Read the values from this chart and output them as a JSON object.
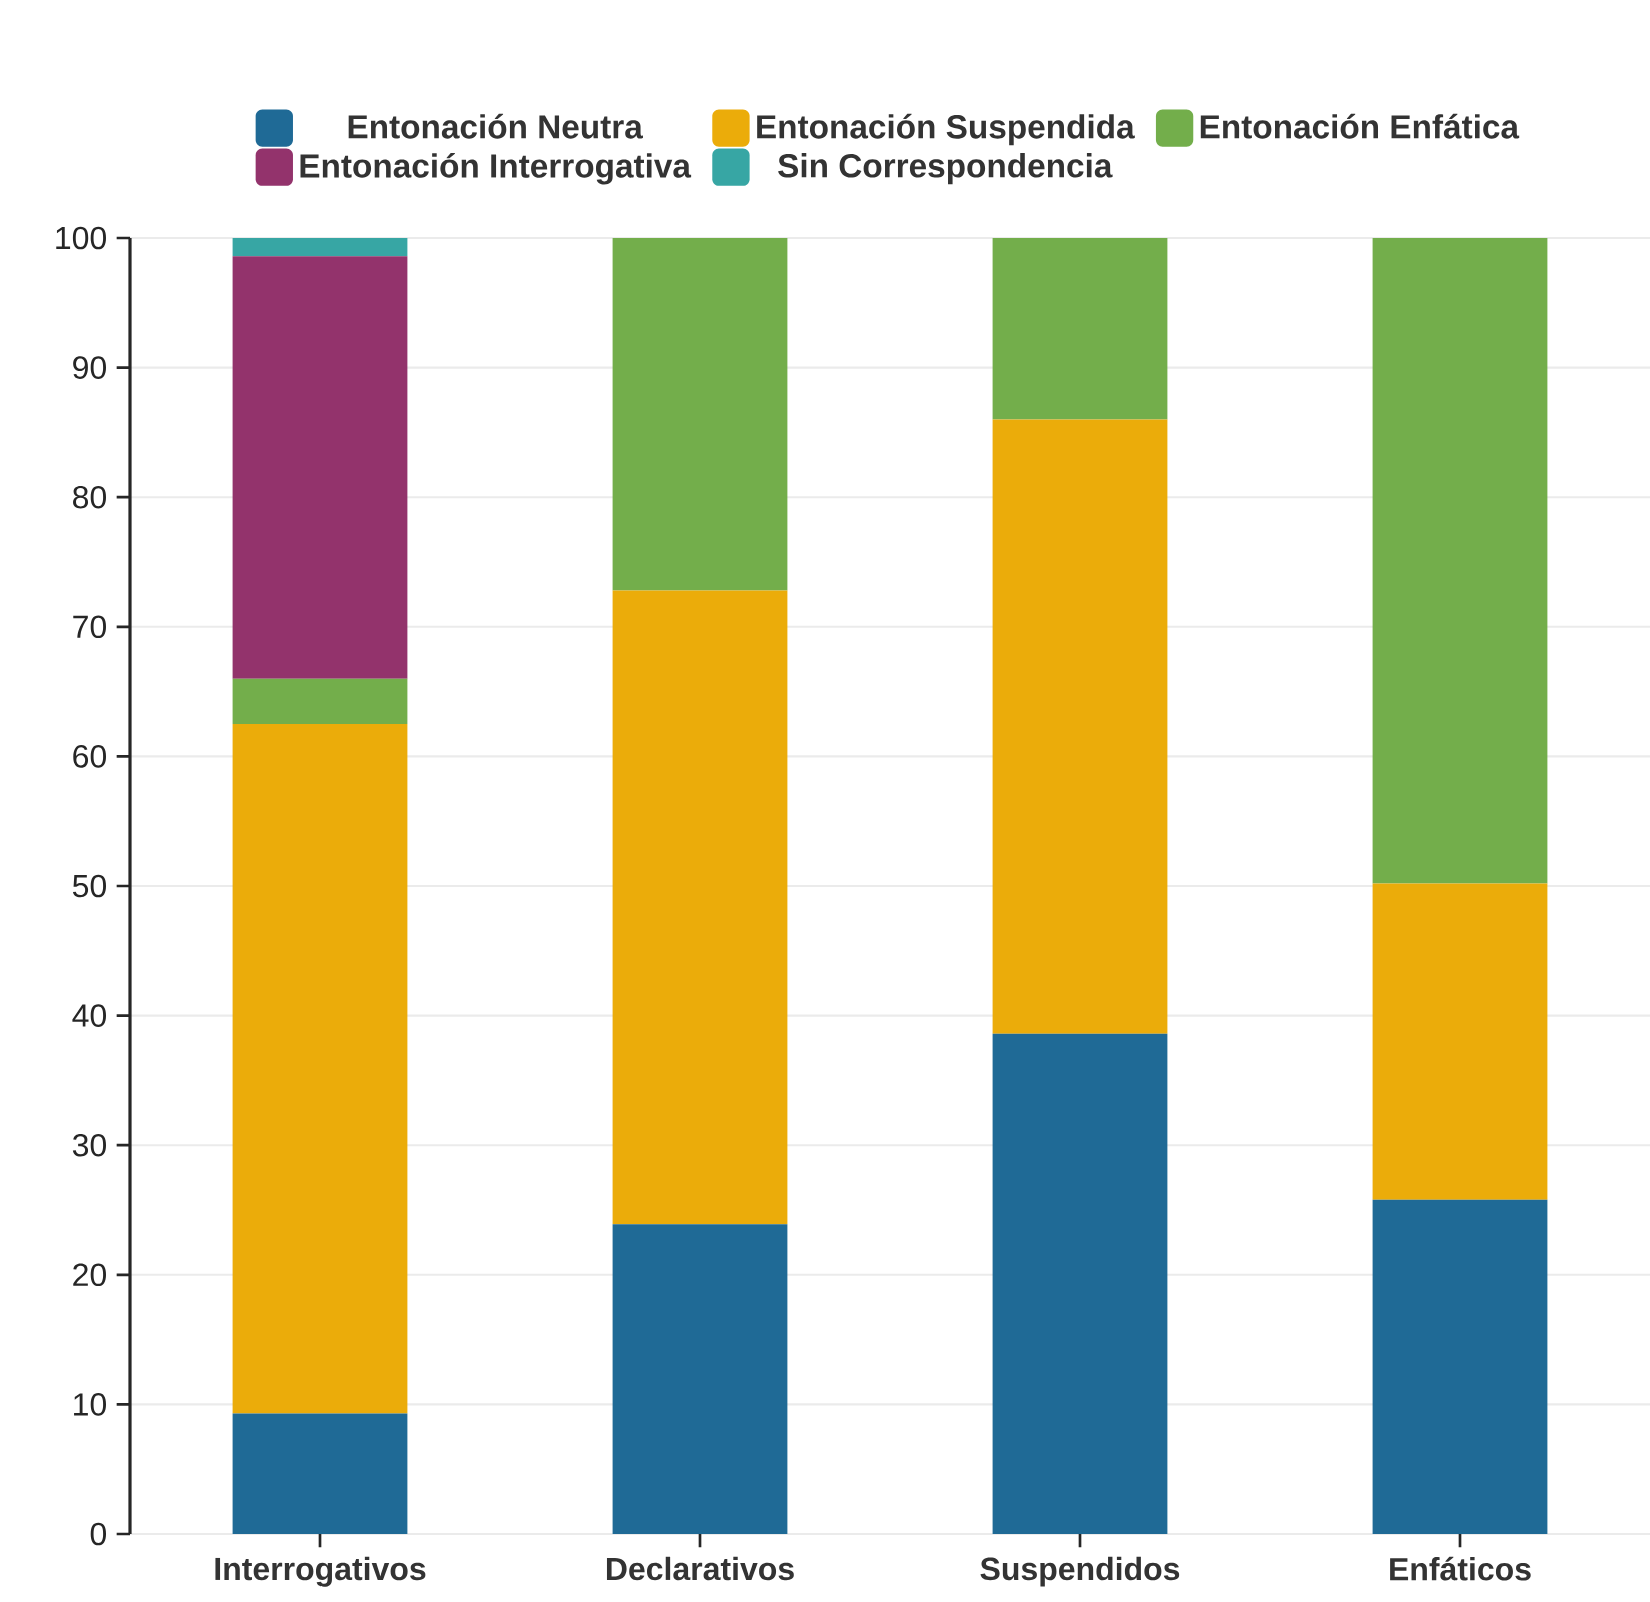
{
  "chart_data": {
    "type": "bar",
    "stacked": true,
    "categories": [
      "Interrogativos",
      "Declarativos",
      "Suspendidos",
      "Enfáticos"
    ],
    "series": [
      {
        "name": "Entonación Neutra",
        "color": "#1f6a96",
        "values": [
          9.3,
          23.9,
          38.6,
          25.8
        ]
      },
      {
        "name": "Entonación Suspendida",
        "color": "#ebac0a",
        "values": [
          53.2,
          48.9,
          47.4,
          24.4
        ]
      },
      {
        "name": "Entonación Enfática",
        "color": "#73ae4b",
        "values": [
          3.5,
          27.2,
          14.0,
          49.8
        ]
      },
      {
        "name": "Entonación Interrogativa",
        "color": "#93336c",
        "values": [
          32.6,
          0,
          0,
          0
        ]
      },
      {
        "name": "Sin Correspondencia",
        "color": "#37a6a4",
        "values": [
          1.4,
          0,
          0,
          0
        ]
      }
    ],
    "ylim": [
      0,
      100
    ],
    "yticks": [
      0,
      10,
      20,
      30,
      40,
      50,
      60,
      70,
      80,
      90,
      100
    ],
    "grid": "y",
    "legend": "top"
  }
}
